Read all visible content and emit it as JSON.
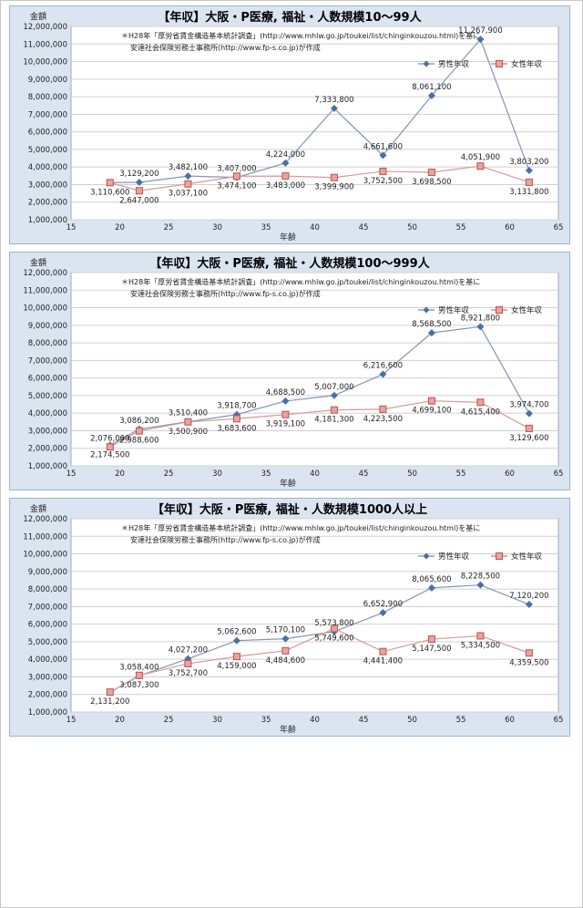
{
  "charts": [
    {
      "title": "【年収】大阪・P医療, 福祉・人数規模10～99人",
      "ylabel": "金額",
      "xlabel": "年齢",
      "note1": "＊H28年「厚労省賃金構造基本統計調査」(http://www.mhlw.go.jp/toukei/list/chinginkouzou.html)を基に",
      "note2": "安達社会保険労務士事務所(http://www.fp-s.co.jp)が作成"
    },
    {
      "title": "【年収】大阪・P医療, 福祉・人数規模100～999人",
      "ylabel": "金額",
      "xlabel": "年齢",
      "note1": "＊H28年「厚労省賃金構造基本統計調査」(http://www.mhlw.go.jp/toukei/list/chinginkouzou.html)を基に",
      "note2": "安達社会保険労務士事務所(http://www.fp-s.co.jp)が作成"
    },
    {
      "title": "【年収】大阪・P医療, 福祉・人数規模1000人以上",
      "ylabel": "金額",
      "xlabel": "年齢",
      "note1": "＊H28年「厚労省賃金構造基本統計調査」(http://www.mhlw.go.jp/toukei/list/chinginkouzou.html)を基に",
      "note2": "安達社会保険労務士事務所(http://www.fp-s.co.jp)が作成"
    }
  ],
  "chart_data": [
    {
      "type": "line",
      "title": "【年収】大阪・P医療, 福祉・人数規模10～99人",
      "xlabel": "年齢",
      "ylabel": "金額",
      "xlim": [
        15,
        65
      ],
      "xticks": [
        15,
        20,
        25,
        30,
        35,
        40,
        45,
        50,
        55,
        60,
        65
      ],
      "ylim": [
        1000000,
        12000000
      ],
      "yticks": [
        "1,000,000",
        "2,000,000",
        "3,000,000",
        "4,000,000",
        "5,000,000",
        "6,000,000",
        "7,000,000",
        "8,000,000",
        "9,000,000",
        "10,000,000",
        "11,000,000",
        "12,000,000"
      ],
      "grid": true,
      "legend": "top-right",
      "x": [
        19,
        22,
        27,
        32,
        37,
        42,
        47,
        52,
        57,
        62
      ],
      "series": [
        {
          "name": "男性年収",
          "color": "#4a6fa5",
          "marker": "diamond",
          "values": [
            3110600,
            3129200,
            3482100,
            3407000,
            4224000,
            7333800,
            4661600,
            8061100,
            11267900,
            3803200
          ],
          "labels": [
            "3,110,600",
            "3,129,200",
            "3,482,100",
            "3,407,000",
            "4,224,000",
            "7,333,800",
            "4,661,600",
            "8,061,100",
            "11,267,900",
            "3,803,200"
          ]
        },
        {
          "name": "女性年収",
          "color": "#c0504d",
          "marker": "square",
          "values": [
            3110600,
            2647000,
            3037100,
            3474100,
            3483000,
            3399900,
            3752500,
            3698500,
            4051900,
            3131800
          ],
          "labels": [
            "",
            "2,647,000",
            "3,037,100",
            "3,474,100",
            "3,483,000",
            "3,399,900",
            "3,752,500",
            "3,698,500",
            "4,051,900",
            "3,131,800"
          ]
        }
      ]
    },
    {
      "type": "line",
      "title": "【年収】大阪・P医療, 福祉・人数規模100～999人",
      "xlabel": "年齢",
      "ylabel": "金額",
      "xlim": [
        15,
        65
      ],
      "xticks": [
        15,
        20,
        25,
        30,
        35,
        40,
        45,
        50,
        55,
        60,
        65
      ],
      "ylim": [
        1000000,
        12000000
      ],
      "yticks": [
        "1,000,000",
        "2,000,000",
        "3,000,000",
        "4,000,000",
        "5,000,000",
        "6,000,000",
        "7,000,000",
        "8,000,000",
        "9,000,000",
        "10,000,000",
        "11,000,000",
        "12,000,000"
      ],
      "grid": true,
      "legend": "top-right",
      "x": [
        19,
        22,
        27,
        32,
        37,
        42,
        47,
        52,
        57,
        62
      ],
      "series": [
        {
          "name": "男性年収",
          "color": "#4a6fa5",
          "marker": "diamond",
          "values": [
            2174500,
            3086200,
            3510400,
            3918700,
            4688500,
            5007000,
            6216600,
            8568500,
            8921800,
            3974700
          ],
          "labels": [
            "2,174,500",
            "3,086,200",
            "3,510,400",
            "3,918,700",
            "4,688,500",
            "5,007,000",
            "6,216,600",
            "8,568,500",
            "8,921,800",
            "3,974,700"
          ]
        },
        {
          "name": "女性年収",
          "color": "#c0504d",
          "marker": "square",
          "values": [
            2076000,
            2988600,
            3500900,
            3683600,
            3919100,
            4181300,
            4223500,
            4699100,
            4615400,
            3129600
          ],
          "labels": [
            "2,076,000",
            "2,988,600",
            "3,500,900",
            "3,683,600",
            "3,919,100",
            "4,181,300",
            "4,223,500",
            "4,699,100",
            "4,615,400",
            "3,129,600"
          ]
        }
      ]
    },
    {
      "type": "line",
      "title": "【年収】大阪・P医療, 福祉・人数規模1000人以上",
      "xlabel": "年齢",
      "ylabel": "金額",
      "xlim": [
        15,
        65
      ],
      "xticks": [
        15,
        20,
        25,
        30,
        35,
        40,
        45,
        50,
        55,
        60,
        65
      ],
      "ylim": [
        1000000,
        12000000
      ],
      "yticks": [
        "1,000,000",
        "2,000,000",
        "3,000,000",
        "4,000,000",
        "5,000,000",
        "6,000,000",
        "7,000,000",
        "8,000,000",
        "9,000,000",
        "10,000,000",
        "11,000,000",
        "12,000,000"
      ],
      "grid": true,
      "legend": "top-right",
      "x": [
        19,
        22,
        27,
        32,
        37,
        42,
        47,
        52,
        57,
        62
      ],
      "series": [
        {
          "name": "男性年収",
          "color": "#4a6fa5",
          "marker": "diamond",
          "values": [
            2131200,
            3058400,
            4027200,
            5062600,
            5170100,
            5573800,
            6652900,
            8065600,
            8228500,
            7120200
          ],
          "labels": [
            "2,131,200",
            "3,058,400",
            "4,027,200",
            "5,062,600",
            "5,170,100",
            "5,573,800",
            "6,652,900",
            "8,065,600",
            "8,228,500",
            "7,120,200"
          ]
        },
        {
          "name": "女性年収",
          "color": "#c0504d",
          "marker": "square",
          "values": [
            2131200,
            3087300,
            3752700,
            4159000,
            4484600,
            5749600,
            4441400,
            5147500,
            5334500,
            4359500
          ],
          "labels": [
            "",
            "3,087,300",
            "3,752,700",
            "4,159,000",
            "4,484,600",
            "5,749,600",
            "4,441,400",
            "5,147,500",
            "5,334,500",
            "4,359,500"
          ]
        }
      ]
    }
  ]
}
